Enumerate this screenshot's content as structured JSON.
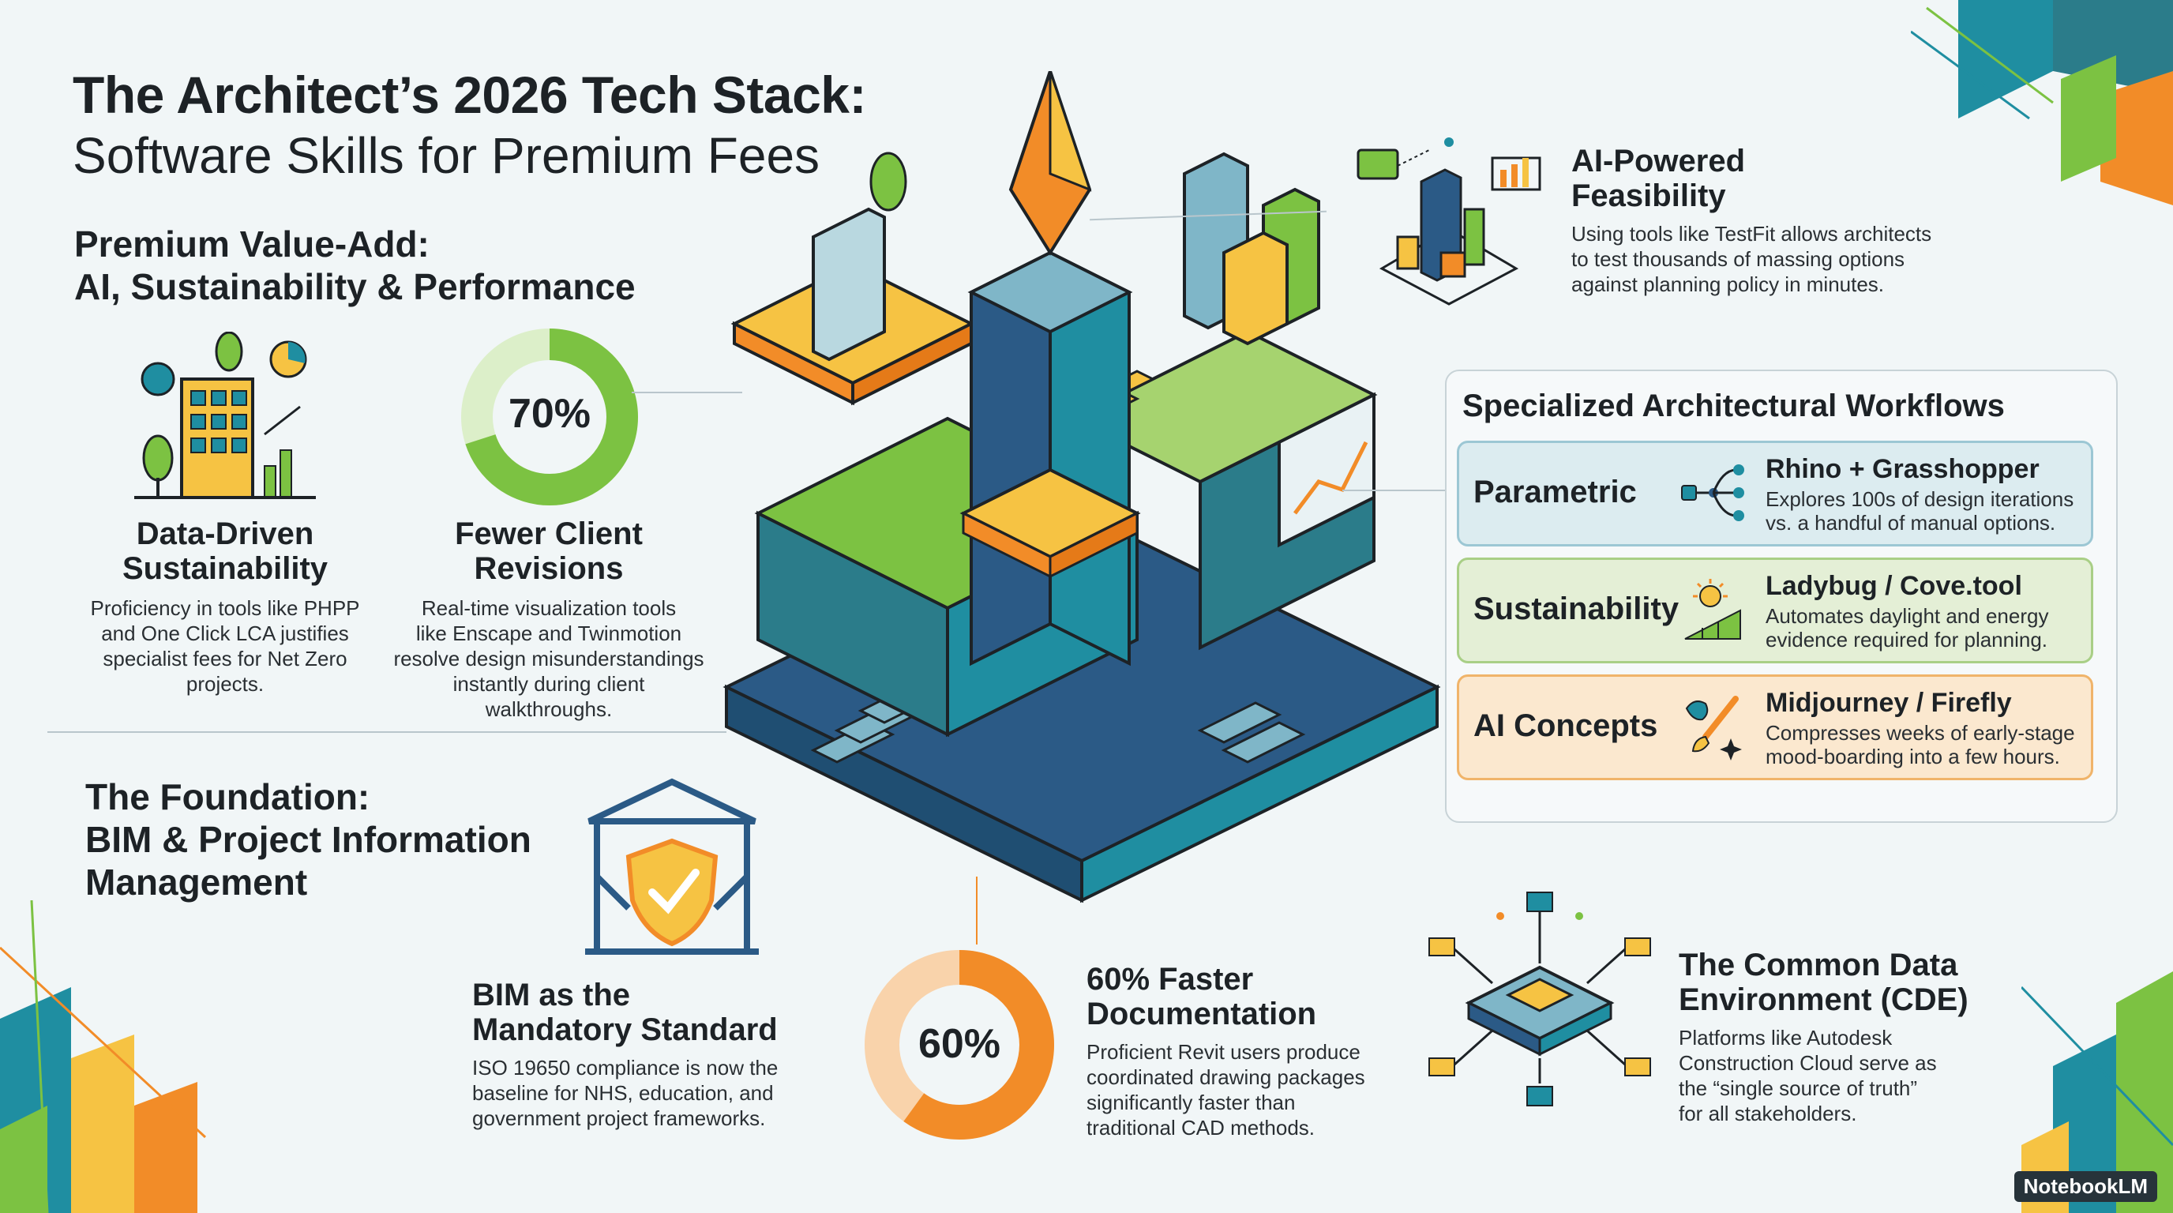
{
  "title": {
    "line1": "The Architect’s 2026 Tech Stack:",
    "line2": "Software Skills for Premium Fees"
  },
  "premium": {
    "heading_line1": "Premium Value-Add:",
    "heading_line2": "AI, Sustainability & Performance"
  },
  "sustainability_card": {
    "title_line1": "Data-Driven",
    "title_line2": "Sustainability",
    "body": [
      "Proficiency in tools like PHPP",
      "and One Click LCA justifies",
      "specialist fees for Net Zero",
      "projects."
    ]
  },
  "revisions_card": {
    "percent_label": "70%",
    "percent_value": 70,
    "title_line1": "Fewer Client",
    "title_line2": "Revisions",
    "body": [
      "Real-time visualization tools",
      "like Enscape and Twinmotion",
      "resolve design misunderstandings",
      "instantly during client",
      "walkthroughs."
    ]
  },
  "foundation": {
    "heading": [
      "The Foundation:",
      "BIM & Project Information",
      "Management"
    ]
  },
  "bim_card": {
    "title_line1": "BIM as the",
    "title_line2": "Mandatory Standard",
    "body": [
      "ISO 19650 compliance is now the",
      "baseline for NHS, education, and",
      "government project frameworks."
    ]
  },
  "documentation_card": {
    "percent_label": "60%",
    "percent_value": 60,
    "title_line1": "60% Faster",
    "title_line2": "Documentation",
    "body": [
      "Proficient Revit users produce",
      "coordinated drawing packages",
      "significantly faster than",
      "traditional CAD methods."
    ]
  },
  "feasibility_card": {
    "title_line1": "AI-Powered",
    "title_line2": "Feasibility",
    "body": [
      "Using tools like TestFit allows architects",
      "to test thousands of massing options",
      "against planning policy in minutes."
    ]
  },
  "workflows": {
    "title": "Specialized Architectural Workflows",
    "rows": [
      {
        "label": "Parametric",
        "tool": "Rhino + Grasshopper",
        "desc": [
          "Explores 100s of design iterations",
          "vs. a handful of manual options."
        ],
        "icon": "node-graph-icon",
        "fill": "#dcecf0",
        "border": "#9cc7d4"
      },
      {
        "label": "Sustainability",
        "tool": "Ladybug / Cove.tool",
        "desc": [
          "Automates daylight and energy",
          "evidence required for planning."
        ],
        "icon": "sun-chart-icon",
        "fill": "#e4efd6",
        "border": "#a9cf86"
      },
      {
        "label": "AI Concepts",
        "tool": "Midjourney / Firefly",
        "desc": [
          "Compresses weeks of early-stage",
          "mood-boarding into a few hours."
        ],
        "icon": "paintbrush-icon",
        "fill": "#fbe8cf",
        "border": "#f0b46a"
      }
    ]
  },
  "cde_card": {
    "title_line1": "The Common Data",
    "title_line2": "Environment (CDE)",
    "body": [
      "Platforms like Autodesk",
      "Construction Cloud serve as",
      "the “single source of truth”",
      "for all stakeholders."
    ]
  },
  "brand": "NotebookLM",
  "colors": {
    "teal": "#1f8ea1",
    "navy": "#2b5a86",
    "green": "#7cc242",
    "orange": "#f28c28",
    "yellow": "#f6c343"
  }
}
